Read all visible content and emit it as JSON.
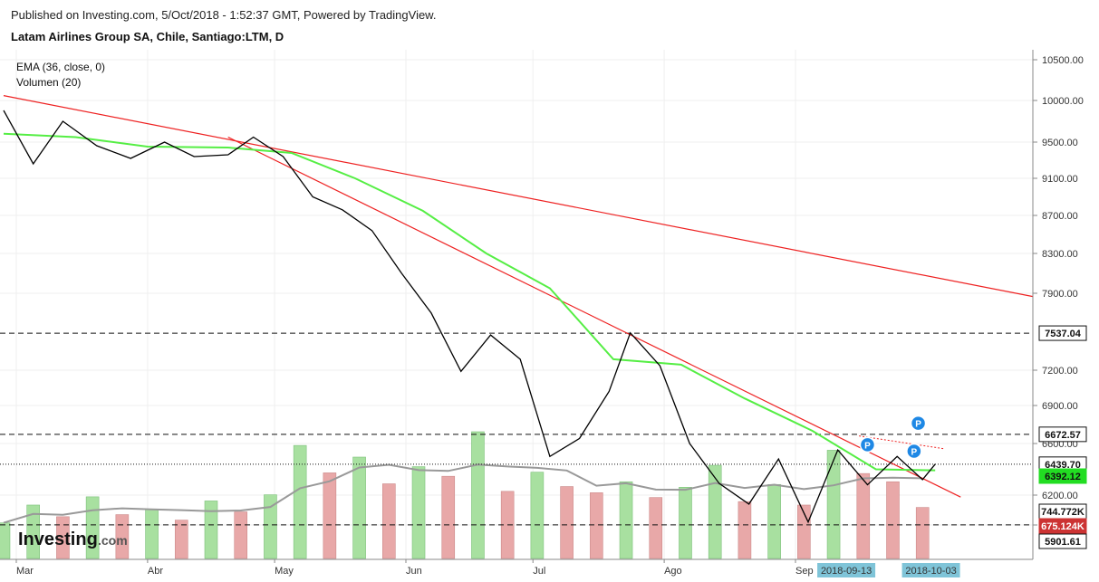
{
  "header": {
    "published": "Published on Investing.com, 5/Oct/2018 - 1:52:37 GMT, Powered by TradingView.",
    "title": "Latam Airlines Group SA, Chile, Santiago:LTM, D"
  },
  "legend": {
    "ema": "EMA (36, close, 0)",
    "volume": "Volumen (20)"
  },
  "logo": {
    "main": "Investing",
    "suffix": ".com"
  },
  "colors": {
    "price": "#000000",
    "ema": "#55ee44",
    "trend": "#ee2222",
    "vol_up": "#a8e0a0",
    "vol_down": "#e8a8a8",
    "vol_ma": "#999999",
    "date_badge": "#7fc4d8",
    "marker": "#1e88e5"
  },
  "chart_data": {
    "type": "line",
    "y_ticks": [
      "10500.00",
      "10000.00",
      "9500.00",
      "9100.00",
      "8700.00",
      "8300.00",
      "7900.00",
      "7200.00",
      "6900.00",
      "6600.00",
      "6200.00",
      "5900.00"
    ],
    "x_ticks": [
      "Mar",
      "Abr",
      "May",
      "Jun",
      "Jul",
      "Ago",
      "Sep"
    ],
    "date_badges": [
      "2018-09-13",
      "2018-10-03"
    ],
    "price_labels": {
      "resistance_1": "7537.04",
      "resistance_2": "6672.57",
      "last_close": "6439.70",
      "ema_value": "6392.12",
      "volume": "744.772K",
      "volume_ma": "675.124K",
      "support": "5901.61"
    },
    "markers": [
      "P",
      "P",
      "P"
    ],
    "series": [
      {
        "name": "EMA (36, close, 0)",
        "x": [
          "2018-02-26",
          "2018-03-15",
          "2018-04-01",
          "2018-04-20",
          "2018-05-05",
          "2018-05-20",
          "2018-06-05",
          "2018-06-20",
          "2018-07-05",
          "2018-07-20",
          "2018-08-05",
          "2018-08-20",
          "2018-09-05",
          "2018-09-20",
          "2018-10-04"
        ],
        "y": [
          9600,
          9560,
          9450,
          9440,
          9380,
          9100,
          8750,
          8300,
          7950,
          7300,
          7250,
          6960,
          6700,
          6400,
          6392
        ]
      },
      {
        "name": "close",
        "x": [
          "2018-02-26",
          "2018-03-05",
          "2018-03-12",
          "2018-03-20",
          "2018-03-28",
          "2018-04-05",
          "2018-04-12",
          "2018-04-20",
          "2018-04-26",
          "2018-05-03",
          "2018-05-10",
          "2018-05-17",
          "2018-05-24",
          "2018-05-31",
          "2018-06-07",
          "2018-06-14",
          "2018-06-21",
          "2018-06-28",
          "2018-07-05",
          "2018-07-12",
          "2018-07-19",
          "2018-07-24",
          "2018-07-31",
          "2018-08-07",
          "2018-08-14",
          "2018-08-21",
          "2018-08-28",
          "2018-09-04",
          "2018-09-11",
          "2018-09-18",
          "2018-09-25",
          "2018-10-01",
          "2018-10-04"
        ],
        "y": [
          9880,
          9260,
          9750,
          9460,
          9320,
          9500,
          9340,
          9360,
          9560,
          9340,
          8900,
          8760,
          8540,
          8100,
          7720,
          7190,
          7520,
          7300,
          6500,
          6640,
          7020,
          7540,
          7240,
          6600,
          6290,
          6110,
          6480,
          5930,
          6550,
          6280,
          6500,
          6320,
          6440
        ]
      },
      {
        "name": "Volumen (20)",
        "x": [
          "2018-02-26",
          "2018-03-05",
          "2018-03-12",
          "2018-03-19",
          "2018-03-26",
          "2018-04-02",
          "2018-04-09",
          "2018-04-16",
          "2018-04-23",
          "2018-04-30",
          "2018-05-07",
          "2018-05-14",
          "2018-05-21",
          "2018-05-28",
          "2018-06-04",
          "2018-06-11",
          "2018-06-18",
          "2018-06-25",
          "2018-07-02",
          "2018-07-09",
          "2018-07-16",
          "2018-07-23",
          "2018-07-30",
          "2018-08-06",
          "2018-08-13",
          "2018-08-20",
          "2018-08-27",
          "2018-09-03",
          "2018-09-10",
          "2018-09-17",
          "2018-09-24",
          "2018-10-01"
        ],
        "y": [
          520,
          780,
          610,
          900,
          640,
          720,
          560,
          840,
          680,
          930,
          1650,
          1250,
          1480,
          1090,
          1340,
          1200,
          1850,
          980,
          1260,
          1050,
          960,
          1120,
          890,
          1040,
          1360,
          830,
          1080,
          780,
          1580,
          1240,
          1120,
          745
        ]
      }
    ]
  }
}
